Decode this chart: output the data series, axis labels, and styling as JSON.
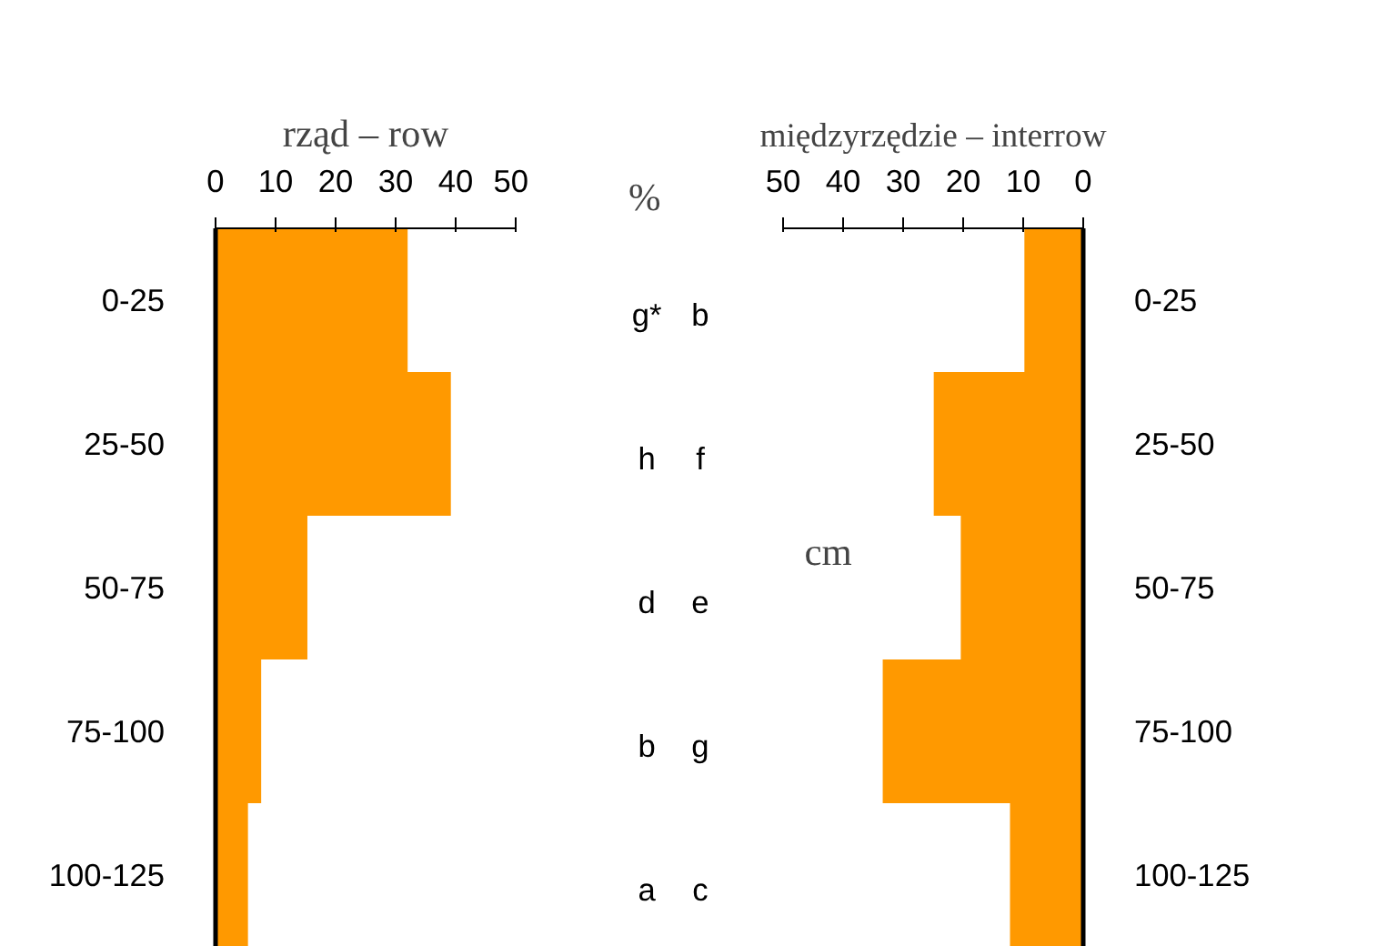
{
  "chart_data": [
    {
      "type": "bar",
      "orientation": "horizontal",
      "title": "rząd – row",
      "categories": [
        "0-25",
        "25-50",
        "50-75",
        "75-100",
        "100-125"
      ],
      "series": [
        {
          "color": "#ff9900",
          "values": [
            32,
            39.2,
            15.3,
            7.6,
            5.4
          ]
        }
      ],
      "xlim": [
        0,
        50
      ],
      "xticks": [
        0,
        10,
        20,
        30,
        40,
        50
      ],
      "grid": false,
      "annotations": [
        "%",
        "g*",
        "h",
        "d",
        "b",
        "a"
      ]
    },
    {
      "type": "bar",
      "orientation": "horizontal",
      "title": "międzyrzędzie – interrow",
      "categories": [
        "0-25",
        "25-50",
        "50-75",
        "75-100",
        "100-125"
      ],
      "series": [
        {
          "color": "#ff9900",
          "values": [
            9.8,
            24.9,
            20.4,
            33.4,
            12.2
          ]
        }
      ],
      "xlim": [
        50,
        0
      ],
      "xticks": [
        50,
        40,
        30,
        20,
        10,
        0
      ],
      "grid": false,
      "annotations": [
        "cm",
        "b",
        "f",
        "e",
        "g",
        "c"
      ]
    }
  ]
}
